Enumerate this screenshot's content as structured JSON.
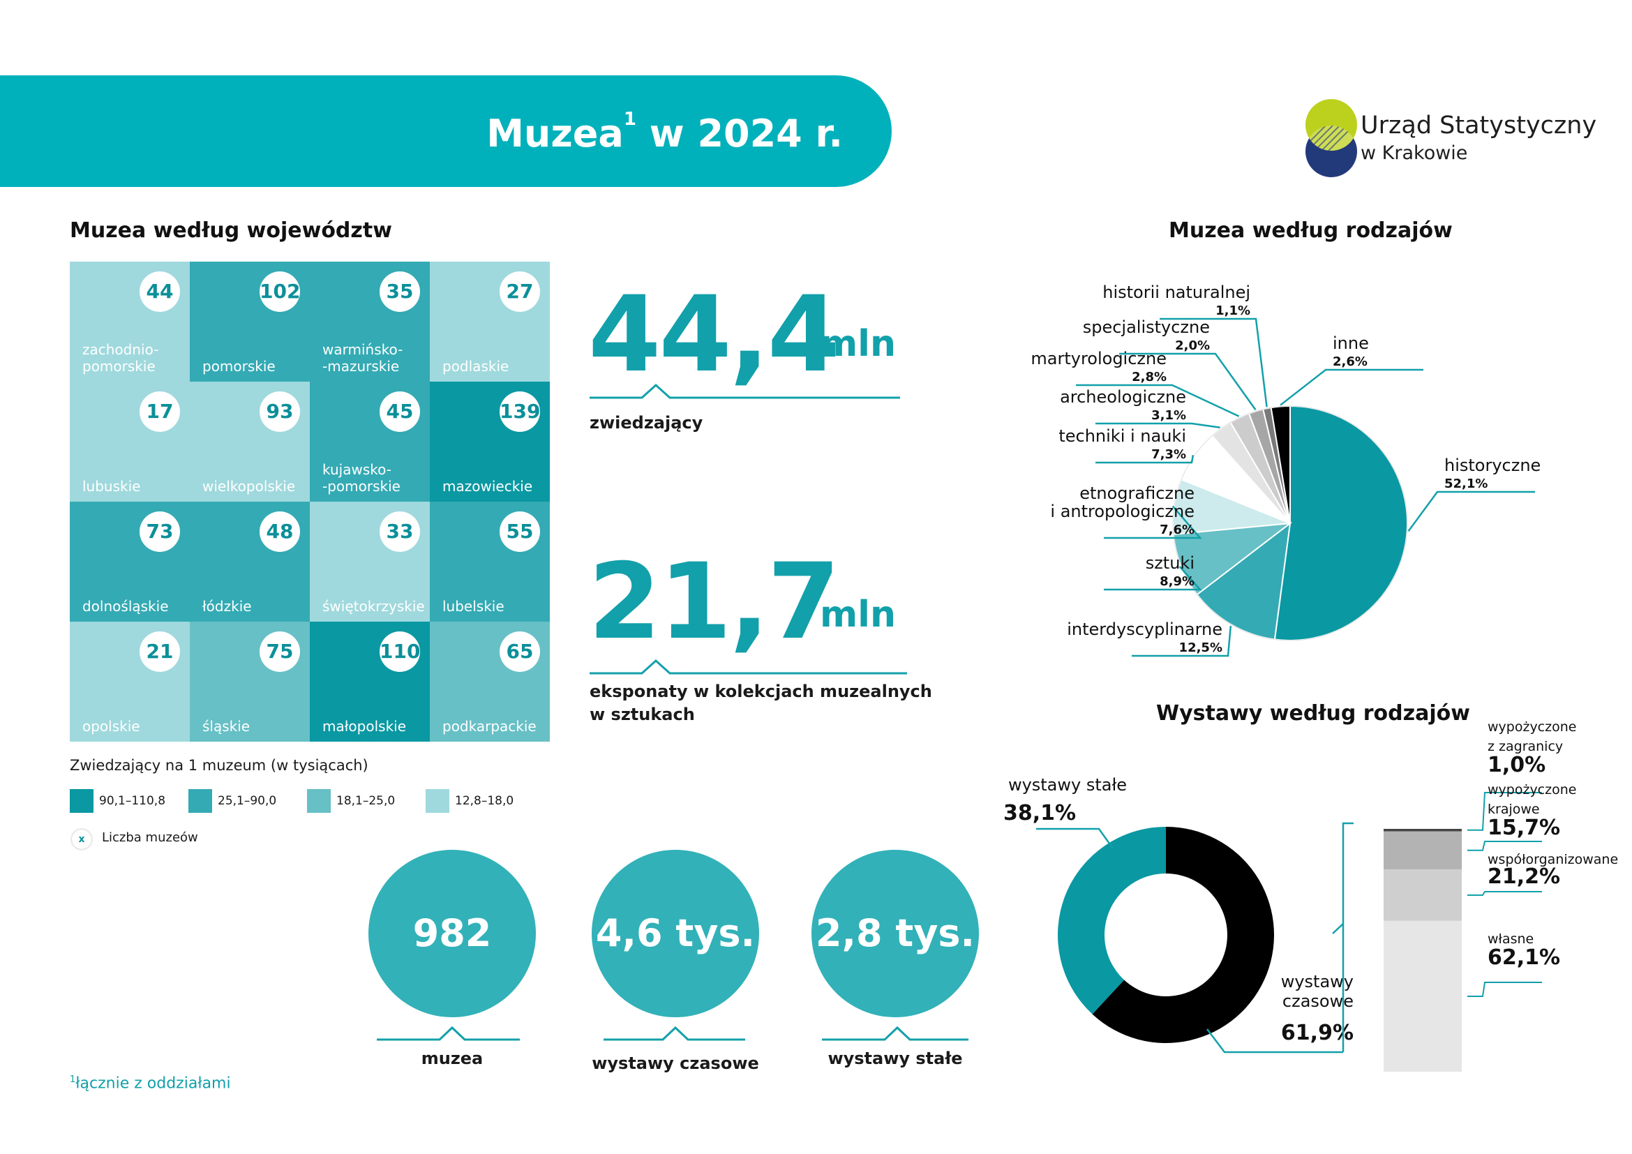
{
  "header": {
    "title": "Muzea",
    "title_sup": "1",
    "title_rest": " w 2024 r."
  },
  "logo": {
    "name": "Urząd Statystyczny",
    "sub": "w Krakowie"
  },
  "map": {
    "title": "Muzea według województw",
    "cells": [
      {
        "name": "zachodnio-\npomorskie",
        "count": "44",
        "level": 4
      },
      {
        "name": "pomorskie",
        "count": "102",
        "level": 2
      },
      {
        "name": "warmińsko-\n-mazurskie",
        "count": "35",
        "level": 2
      },
      {
        "name": "podlaskie",
        "count": "27",
        "level": 4
      },
      {
        "name": "lubuskie",
        "count": "17",
        "level": 4
      },
      {
        "name": "wielkopolskie",
        "count": "93",
        "level": 4
      },
      {
        "name": "kujawsko-\n-pomorskie",
        "count": "45",
        "level": 2
      },
      {
        "name": "mazowieckie",
        "count": "139",
        "level": 1
      },
      {
        "name": "dolnośląskie",
        "count": "73",
        "level": 2
      },
      {
        "name": "łódzkie",
        "count": "48",
        "level": 2
      },
      {
        "name": "świętokrzyskie",
        "count": "33",
        "level": 4
      },
      {
        "name": "lubelskie",
        "count": "55",
        "level": 2
      },
      {
        "name": "opolskie",
        "count": "21",
        "level": 4
      },
      {
        "name": "śląskie",
        "count": "75",
        "level": 3
      },
      {
        "name": "małopolskie",
        "count": "110",
        "level": 1
      },
      {
        "name": "podkarpackie",
        "count": "65",
        "level": 3
      }
    ],
    "legend": {
      "title": "Zwiedzający na 1 muzeum (w tysiącach)",
      "items": [
        {
          "label": "90,1–110,8",
          "color": "#0a98a3"
        },
        {
          "label": "25,1–90,0",
          "color": "#34abb4"
        },
        {
          "label": "18,1–25,0",
          "color": "#66c0c6"
        },
        {
          "label": "12,8–18,0",
          "color": "#a0d9dd"
        }
      ],
      "count_symbol": "x",
      "count_label": "Liczba muzeów"
    }
  },
  "stats": {
    "visitors": {
      "value": "44,4",
      "unit": "mln",
      "label": "zwiedzający"
    },
    "exhibits": {
      "value": "21,7",
      "unit": "mln",
      "label_line1": "eksponaty w kolekcjach muzealnych",
      "label_line2": "w sztukach"
    },
    "circles": [
      {
        "value": "982",
        "label": "muzea"
      },
      {
        "value": "4,6 tys.",
        "label": "wystawy czasowe"
      },
      {
        "value": "2,8 tys.",
        "label": "wystawy stałe"
      }
    ]
  },
  "footnote": {
    "sup": "1",
    "text": "łącznie z oddziałami"
  },
  "chart_data": [
    {
      "type": "pie",
      "title": "Muzea według rodzajów",
      "categories": [
        "historyczne",
        "interdyscyplinarne",
        "sztuki",
        "etnograficzne i antropologiczne",
        "techniki i nauki",
        "archeologiczne",
        "martyrologiczne",
        "specjalistyczne",
        "historii naturalnej",
        "inne"
      ],
      "labels": [
        "52,1%",
        "12,5%",
        "8,9%",
        "7,6%",
        "7,3%",
        "3,1%",
        "2,8%",
        "2,0%",
        "1,1%",
        "2,6%"
      ],
      "values": [
        52.1,
        12.5,
        8.9,
        7.6,
        7.3,
        3.1,
        2.8,
        2.0,
        1.1,
        2.6
      ],
      "colors": [
        "#0a98a3",
        "#34abb4",
        "#66c0c6",
        "#cdeaec",
        "#ffffff",
        "#e3e3e3",
        "#cccccc",
        "#a6a6a6",
        "#7a7a7a",
        "#000000"
      ]
    },
    {
      "type": "donut",
      "title": "Wystawy według rodzajów",
      "categories": [
        "wystawy stałe",
        "wystawy czasowe"
      ],
      "labels": [
        "38,1%",
        "61,9%"
      ],
      "values": [
        38.1,
        61.9
      ],
      "colors": [
        "#0a98a3",
        "#000000"
      ]
    },
    {
      "type": "bar",
      "subtype": "stacked-100",
      "categories": [
        "wypożyczone z zagranicy",
        "wypożyczone krajowe",
        "współorganizowane",
        "własne"
      ],
      "labels": [
        "1,0%",
        "15,7%",
        "21,2%",
        "62,1%"
      ],
      "values": [
        1.0,
        15.7,
        21.2,
        62.1
      ],
      "colors": [
        "#444444",
        "#b3b3b3",
        "#cfcfcf",
        "#e6e6e6"
      ]
    }
  ]
}
